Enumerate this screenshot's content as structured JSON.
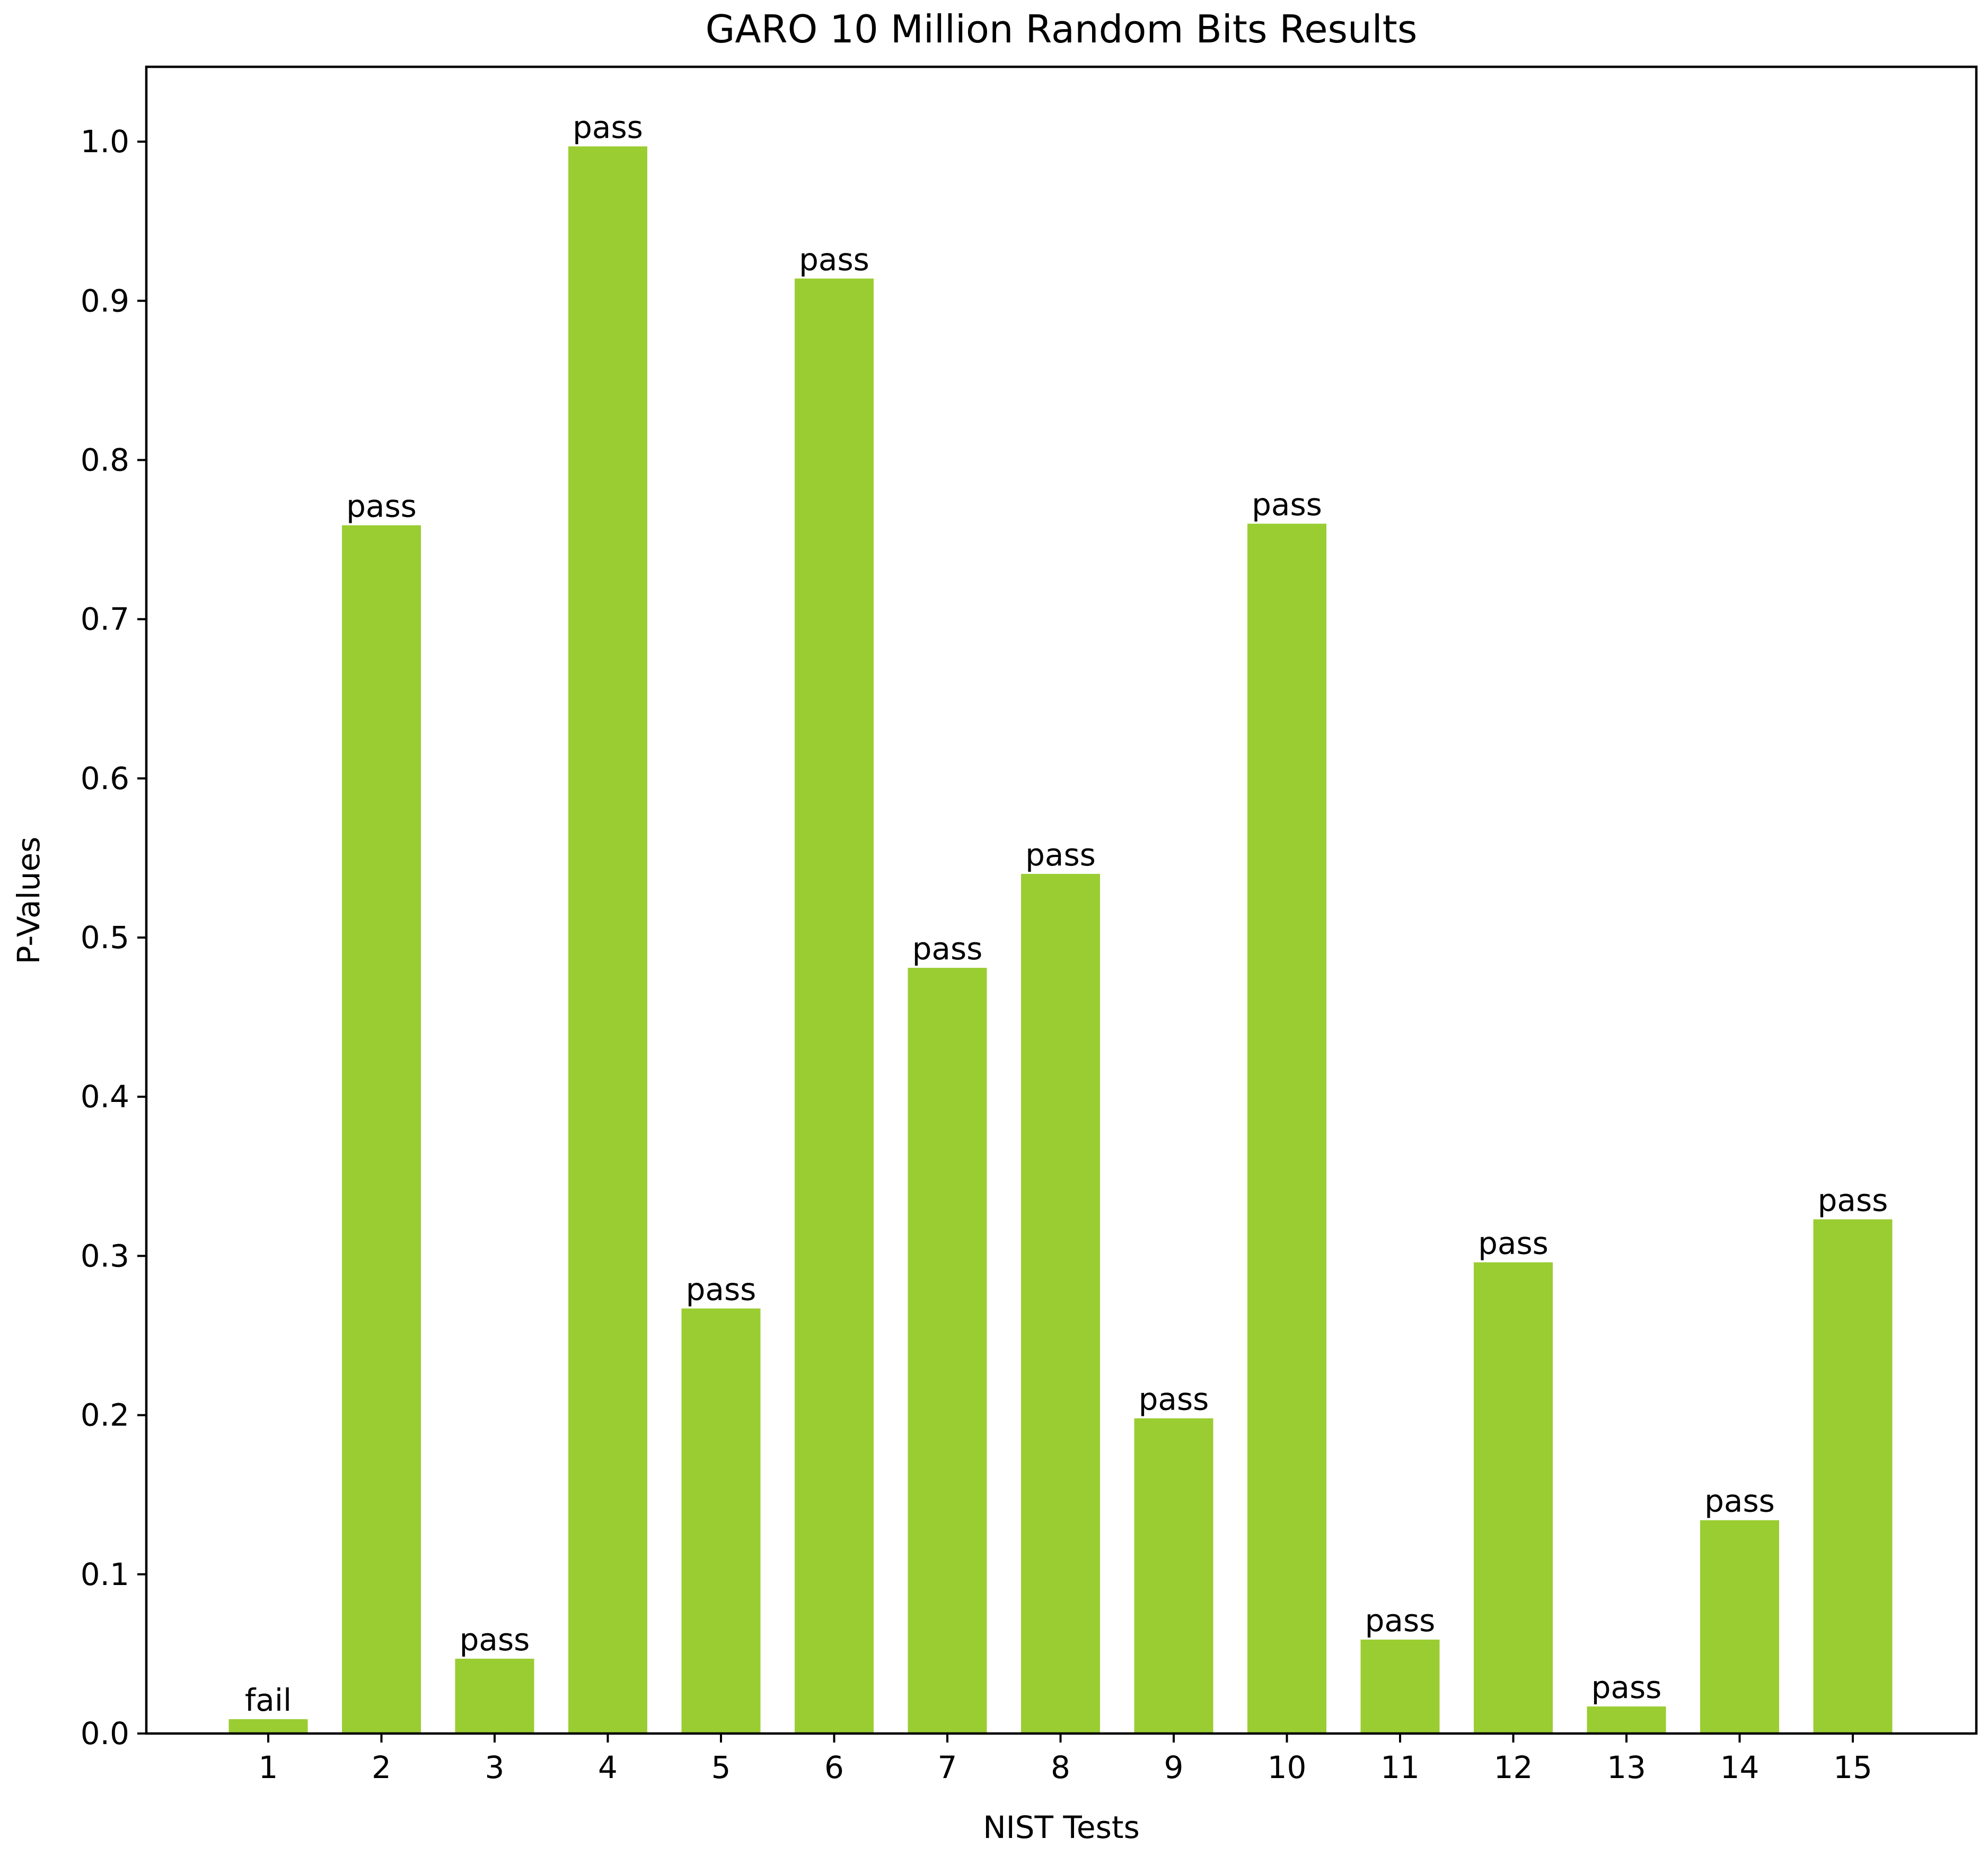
{
  "chart_data": {
    "type": "bar",
    "title": "GARO 10 Million Random Bits Results",
    "xlabel": "NIST Tests",
    "ylabel": "P-Values",
    "categories": [
      "1",
      "2",
      "3",
      "4",
      "5",
      "6",
      "7",
      "8",
      "9",
      "10",
      "11",
      "12",
      "13",
      "14",
      "15"
    ],
    "values": [
      0.009,
      0.759,
      0.047,
      0.997,
      0.267,
      0.914,
      0.481,
      0.54,
      0.198,
      0.76,
      0.059,
      0.296,
      0.017,
      0.134,
      0.323
    ],
    "bar_labels": [
      "fail",
      "pass",
      "pass",
      "pass",
      "pass",
      "pass",
      "pass",
      "pass",
      "pass",
      "pass",
      "pass",
      "pass",
      "pass",
      "pass",
      "pass"
    ],
    "yticks": [
      "0.0",
      "0.1",
      "0.2",
      "0.3",
      "0.4",
      "0.5",
      "0.6",
      "0.7",
      "0.8",
      "0.9",
      "1.0"
    ],
    "ylim": [
      0,
      1.047
    ],
    "grid": false,
    "bar_color": "#9acd32"
  }
}
